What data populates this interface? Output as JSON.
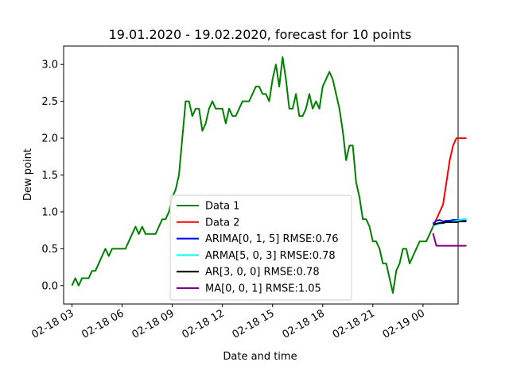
{
  "chart_data": {
    "type": "line",
    "title": "19.01.2020 - 19.02.2020, forecast for 10 points",
    "xlabel": "Date and time",
    "ylabel": "Dew point",
    "x_unit": "hours",
    "xlim": [
      2.5,
      26.1
    ],
    "ylim": [
      -0.25,
      3.25
    ],
    "x_ticks": [
      {
        "x": 3,
        "label": "02-18 03"
      },
      {
        "x": 6,
        "label": "02-18 06"
      },
      {
        "x": 9,
        "label": "02-18 09"
      },
      {
        "x": 12,
        "label": "02-18 12"
      },
      {
        "x": 15,
        "label": "02-18 15"
      },
      {
        "x": 18,
        "label": "02-18 18"
      },
      {
        "x": 21,
        "label": "02-18 21"
      },
      {
        "x": 24,
        "label": "02-19 00"
      }
    ],
    "y_ticks": [
      0.0,
      0.5,
      1.0,
      1.5,
      2.0,
      2.5,
      3.0
    ],
    "y_tick_labels": [
      "0.0",
      "0.5",
      "1.0",
      "1.5",
      "2.0",
      "2.5",
      "3.0"
    ],
    "grid": false,
    "legend_position": "lower-center",
    "series": [
      {
        "name": "Data 1",
        "color": "#008000",
        "points": [
          [
            3.0,
            0.0
          ],
          [
            3.2,
            0.1
          ],
          [
            3.4,
            0.0
          ],
          [
            3.6,
            0.1
          ],
          [
            3.8,
            0.1
          ],
          [
            4.0,
            0.1
          ],
          [
            4.2,
            0.2
          ],
          [
            4.4,
            0.2
          ],
          [
            4.6,
            0.3
          ],
          [
            4.8,
            0.4
          ],
          [
            5.0,
            0.5
          ],
          [
            5.2,
            0.4
          ],
          [
            5.4,
            0.5
          ],
          [
            5.6,
            0.5
          ],
          [
            5.8,
            0.5
          ],
          [
            6.0,
            0.5
          ],
          [
            6.2,
            0.5
          ],
          [
            6.4,
            0.6
          ],
          [
            6.6,
            0.7
          ],
          [
            6.8,
            0.8
          ],
          [
            7.0,
            0.7
          ],
          [
            7.2,
            0.8
          ],
          [
            7.4,
            0.7
          ],
          [
            7.6,
            0.7
          ],
          [
            7.8,
            0.7
          ],
          [
            8.0,
            0.7
          ],
          [
            8.2,
            0.8
          ],
          [
            8.4,
            0.9
          ],
          [
            8.6,
            0.9
          ],
          [
            8.8,
            1.0
          ],
          [
            9.0,
            1.2
          ],
          [
            9.2,
            1.3
          ],
          [
            9.4,
            1.5
          ],
          [
            9.6,
            2.0
          ],
          [
            9.8,
            2.5
          ],
          [
            10.0,
            2.5
          ],
          [
            10.2,
            2.3
          ],
          [
            10.4,
            2.4
          ],
          [
            10.6,
            2.4
          ],
          [
            10.8,
            2.1
          ],
          [
            11.0,
            2.2
          ],
          [
            11.2,
            2.4
          ],
          [
            11.4,
            2.5
          ],
          [
            11.6,
            2.4
          ],
          [
            11.8,
            2.4
          ],
          [
            12.0,
            2.4
          ],
          [
            12.2,
            2.2
          ],
          [
            12.4,
            2.4
          ],
          [
            12.6,
            2.3
          ],
          [
            12.8,
            2.3
          ],
          [
            13.0,
            2.4
          ],
          [
            13.2,
            2.5
          ],
          [
            13.4,
            2.5
          ],
          [
            13.6,
            2.5
          ],
          [
            13.8,
            2.6
          ],
          [
            14.0,
            2.7
          ],
          [
            14.2,
            2.7
          ],
          [
            14.4,
            2.6
          ],
          [
            14.6,
            2.6
          ],
          [
            14.8,
            2.5
          ],
          [
            15.0,
            2.8
          ],
          [
            15.2,
            3.0
          ],
          [
            15.4,
            2.7
          ],
          [
            15.6,
            3.1
          ],
          [
            15.8,
            2.8
          ],
          [
            16.0,
            2.4
          ],
          [
            16.2,
            2.4
          ],
          [
            16.4,
            2.6
          ],
          [
            16.6,
            2.3
          ],
          [
            16.8,
            2.3
          ],
          [
            17.0,
            2.4
          ],
          [
            17.2,
            2.6
          ],
          [
            17.4,
            2.4
          ],
          [
            17.6,
            2.5
          ],
          [
            17.8,
            2.4
          ],
          [
            18.0,
            2.7
          ],
          [
            18.2,
            2.8
          ],
          [
            18.4,
            2.9
          ],
          [
            18.6,
            2.8
          ],
          [
            18.8,
            2.6
          ],
          [
            19.0,
            2.4
          ],
          [
            19.2,
            2.1
          ],
          [
            19.4,
            1.7
          ],
          [
            19.6,
            1.9
          ],
          [
            19.8,
            1.9
          ],
          [
            20.0,
            1.4
          ],
          [
            20.2,
            1.2
          ],
          [
            20.4,
            0.9
          ],
          [
            20.6,
            0.9
          ],
          [
            20.8,
            0.8
          ],
          [
            21.0,
            0.6
          ],
          [
            21.2,
            0.6
          ],
          [
            21.4,
            0.5
          ],
          [
            21.6,
            0.3
          ],
          [
            21.8,
            0.3
          ],
          [
            22.0,
            0.1
          ],
          [
            22.2,
            -0.1
          ],
          [
            22.4,
            0.2
          ],
          [
            22.6,
            0.3
          ],
          [
            22.8,
            0.5
          ],
          [
            23.0,
            0.5
          ],
          [
            23.2,
            0.3
          ],
          [
            23.4,
            0.4
          ],
          [
            23.6,
            0.5
          ],
          [
            23.8,
            0.6
          ],
          [
            24.0,
            0.6
          ],
          [
            24.2,
            0.6
          ],
          [
            24.4,
            0.7
          ],
          [
            24.6,
            0.8
          ]
        ]
      },
      {
        "name": "Data 2",
        "color": "#ff0000",
        "points": [
          [
            24.6,
            0.8
          ],
          [
            24.8,
            0.9
          ],
          [
            25.0,
            1.0
          ],
          [
            25.2,
            1.1
          ],
          [
            25.4,
            1.4
          ],
          [
            25.6,
            1.7
          ],
          [
            25.8,
            1.9
          ],
          [
            26.0,
            2.0
          ],
          [
            26.2,
            2.0
          ],
          [
            26.4,
            2.0
          ],
          [
            26.6,
            2.0
          ]
        ]
      },
      {
        "name": "ARIMA[0, 1, 5] RMSE:0.76",
        "color": "#0000ff",
        "points": [
          [
            24.6,
            0.84
          ],
          [
            24.8,
            0.88
          ],
          [
            25.0,
            0.89
          ],
          [
            25.2,
            0.87
          ],
          [
            25.4,
            0.88
          ],
          [
            25.6,
            0.88
          ],
          [
            25.8,
            0.89
          ],
          [
            26.0,
            0.89
          ],
          [
            26.2,
            0.89
          ],
          [
            26.4,
            0.89
          ],
          [
            26.6,
            0.89
          ]
        ]
      },
      {
        "name": "ARMA[5, 0, 3] RMSE:0.78",
        "color": "#00ffff",
        "points": [
          [
            24.6,
            0.81
          ],
          [
            24.8,
            0.83
          ],
          [
            25.0,
            0.84
          ],
          [
            25.2,
            0.85
          ],
          [
            25.4,
            0.86
          ],
          [
            25.6,
            0.86
          ],
          [
            25.8,
            0.87
          ],
          [
            26.0,
            0.88
          ],
          [
            26.2,
            0.89
          ],
          [
            26.4,
            0.9
          ],
          [
            26.6,
            0.9
          ]
        ]
      },
      {
        "name": "AR[3, 0, 0] RMSE:0.78",
        "color": "#000000",
        "points": [
          [
            24.6,
            0.82
          ],
          [
            24.8,
            0.84
          ],
          [
            25.0,
            0.85
          ],
          [
            25.2,
            0.85
          ],
          [
            25.4,
            0.86
          ],
          [
            25.6,
            0.86
          ],
          [
            25.8,
            0.86
          ],
          [
            26.0,
            0.86
          ],
          [
            26.2,
            0.87
          ],
          [
            26.4,
            0.87
          ],
          [
            26.6,
            0.87
          ]
        ]
      },
      {
        "name": "MA[0, 0, 1] RMSE:1.05",
        "color": "#800080",
        "points": [
          [
            24.6,
            0.71
          ],
          [
            24.8,
            0.54
          ],
          [
            25.0,
            0.54
          ],
          [
            25.2,
            0.54
          ],
          [
            25.4,
            0.54
          ],
          [
            25.6,
            0.54
          ],
          [
            25.8,
            0.54
          ],
          [
            26.0,
            0.54
          ],
          [
            26.2,
            0.54
          ],
          [
            26.4,
            0.54
          ],
          [
            26.6,
            0.54
          ]
        ]
      }
    ]
  }
}
